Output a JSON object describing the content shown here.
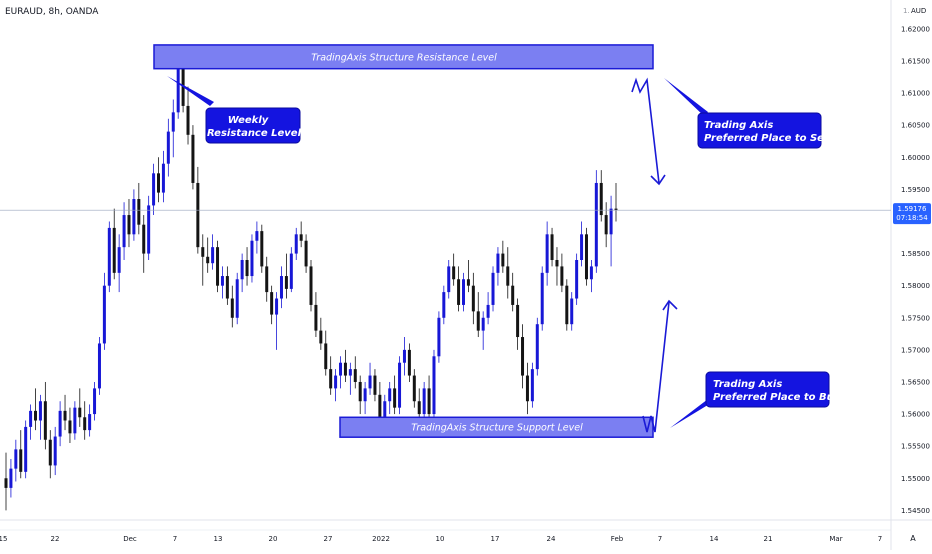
{
  "header": {
    "symbol_line": "EURAUD, 8h, OANDA"
  },
  "price_axis": {
    "currency": "AUD",
    "ticks": [
      "1.62000",
      "1.61500",
      "1.61000",
      "1.60500",
      "1.60000",
      "1.59500",
      "1.58500",
      "1.58000",
      "1.57500",
      "1.57000",
      "1.56500",
      "1.56000",
      "1.55500",
      "1.55000",
      "1.54500"
    ],
    "current_price": "1.59176",
    "countdown": "07:18:54",
    "last_price_color": "#2962ff"
  },
  "time_axis": {
    "labels": [
      "15",
      "22",
      "Dec",
      "7",
      "13",
      "20",
      "27",
      "2022",
      "10",
      "17",
      "24",
      "Feb",
      "7",
      "14",
      "21",
      "Mar",
      "7"
    ],
    "corner_label": "A"
  },
  "annotations": {
    "resistance_label": "TradingAxis Structure Resistance Level",
    "support_label": "TradingAxis Structure Support Level",
    "weekly_line1": "Weekly",
    "weekly_line2": "Resistance Level",
    "sell_line1": "Trading Axis",
    "sell_line2": "Preferred Place to Sell",
    "buy_line1": "Trading Axis",
    "buy_line2": "Preferred Place to Buy"
  },
  "colors": {
    "bull_candle": "#1717d6",
    "bear_candle": "#141414",
    "zone_fill": "#7b7ff2",
    "zone_border": "#1a1ad6",
    "callout_fill": "#1414e0",
    "arrow": "#1a1ad6"
  },
  "chart_data": {
    "type": "candlestick",
    "title": "EURAUD, 8h, OANDA",
    "ylabel": "AUD",
    "ylim": [
      1.5435,
      1.6245
    ],
    "series": [
      {
        "fields": [
          "open",
          "high",
          "low",
          "close"
        ],
        "values": [
          [
            1.55,
            1.554,
            1.545,
            1.5485
          ],
          [
            1.5485,
            1.553,
            1.547,
            1.5515
          ],
          [
            1.5515,
            1.556,
            1.5495,
            1.5545
          ],
          [
            1.5545,
            1.5575,
            1.55,
            1.551
          ],
          [
            1.551,
            1.559,
            1.55,
            1.558
          ],
          [
            1.558,
            1.5615,
            1.556,
            1.5605
          ],
          [
            1.5605,
            1.564,
            1.5575,
            1.559
          ],
          [
            1.559,
            1.563,
            1.556,
            1.562
          ],
          [
            1.562,
            1.565,
            1.5545,
            1.556
          ],
          [
            1.556,
            1.5575,
            1.55,
            1.552
          ],
          [
            1.552,
            1.558,
            1.5505,
            1.5565
          ],
          [
            1.5565,
            1.562,
            1.555,
            1.5605
          ],
          [
            1.5605,
            1.563,
            1.5575,
            1.559
          ],
          [
            1.559,
            1.561,
            1.5555,
            1.557
          ],
          [
            1.557,
            1.562,
            1.556,
            1.561
          ],
          [
            1.561,
            1.564,
            1.558,
            1.5595
          ],
          [
            1.5595,
            1.562,
            1.556,
            1.5575
          ],
          [
            1.5575,
            1.5615,
            1.5565,
            1.56
          ],
          [
            1.56,
            1.565,
            1.559,
            1.564
          ],
          [
            1.564,
            1.572,
            1.563,
            1.571
          ],
          [
            1.571,
            1.582,
            1.57,
            1.58
          ],
          [
            1.58,
            1.59,
            1.579,
            1.589
          ],
          [
            1.589,
            1.592,
            1.581,
            1.582
          ],
          [
            1.582,
            1.588,
            1.579,
            1.586
          ],
          [
            1.586,
            1.593,
            1.584,
            1.591
          ],
          [
            1.591,
            1.5935,
            1.586,
            1.588
          ],
          [
            1.588,
            1.595,
            1.587,
            1.5935
          ],
          [
            1.5935,
            1.596,
            1.588,
            1.5895
          ],
          [
            1.5895,
            1.591,
            1.582,
            1.585
          ],
          [
            1.585,
            1.594,
            1.584,
            1.5925
          ],
          [
            1.5925,
            1.599,
            1.591,
            1.5975
          ],
          [
            1.5975,
            1.6,
            1.593,
            1.5945
          ],
          [
            1.5945,
            1.601,
            1.593,
            1.599
          ],
          [
            1.599,
            1.606,
            1.597,
            1.604
          ],
          [
            1.604,
            1.609,
            1.6,
            1.607
          ],
          [
            1.607,
            1.6175,
            1.606,
            1.616
          ],
          [
            1.616,
            1.6175,
            1.607,
            1.608
          ],
          [
            1.608,
            1.611,
            1.602,
            1.6035
          ],
          [
            1.6035,
            1.605,
            1.595,
            1.596
          ],
          [
            1.596,
            1.5985,
            1.585,
            1.586
          ],
          [
            1.586,
            1.588,
            1.58,
            1.5845
          ],
          [
            1.5845,
            1.5875,
            1.582,
            1.5835
          ],
          [
            1.5835,
            1.588,
            1.5825,
            1.586
          ],
          [
            1.586,
            1.587,
            1.579,
            1.58
          ],
          [
            1.58,
            1.583,
            1.578,
            1.5815
          ],
          [
            1.5815,
            1.583,
            1.577,
            1.578
          ],
          [
            1.578,
            1.58,
            1.5735,
            1.575
          ],
          [
            1.575,
            1.582,
            1.574,
            1.581
          ],
          [
            1.581,
            1.585,
            1.579,
            1.584
          ],
          [
            1.584,
            1.586,
            1.58,
            1.5815
          ],
          [
            1.5815,
            1.588,
            1.5805,
            1.587
          ],
          [
            1.587,
            1.59,
            1.585,
            1.5885
          ],
          [
            1.5885,
            1.5895,
            1.582,
            1.583
          ],
          [
            1.583,
            1.5845,
            1.5775,
            1.579
          ],
          [
            1.579,
            1.58,
            1.574,
            1.5755
          ],
          [
            1.5755,
            1.579,
            1.57,
            1.578
          ],
          [
            1.578,
            1.583,
            1.5765,
            1.5815
          ],
          [
            1.5815,
            1.585,
            1.578,
            1.5795
          ],
          [
            1.5795,
            1.586,
            1.579,
            1.585
          ],
          [
            1.585,
            1.589,
            1.584,
            1.588
          ],
          [
            1.588,
            1.59,
            1.586,
            1.587
          ],
          [
            1.587,
            1.588,
            1.582,
            1.583
          ],
          [
            1.583,
            1.584,
            1.576,
            1.577
          ],
          [
            1.577,
            1.579,
            1.572,
            1.573
          ],
          [
            1.573,
            1.575,
            1.57,
            1.571
          ],
          [
            1.571,
            1.573,
            1.566,
            1.567
          ],
          [
            1.567,
            1.569,
            1.563,
            1.564
          ],
          [
            1.564,
            1.567,
            1.562,
            1.566
          ],
          [
            1.566,
            1.569,
            1.564,
            1.568
          ],
          [
            1.568,
            1.57,
            1.565,
            1.566
          ],
          [
            1.566,
            1.568,
            1.563,
            1.567
          ],
          [
            1.567,
            1.569,
            1.564,
            1.565
          ],
          [
            1.565,
            1.566,
            1.56,
            1.562
          ],
          [
            1.562,
            1.565,
            1.56,
            1.564
          ],
          [
            1.564,
            1.568,
            1.563,
            1.566
          ],
          [
            1.566,
            1.567,
            1.562,
            1.563
          ],
          [
            1.563,
            1.565,
            1.558,
            1.559
          ],
          [
            1.559,
            1.563,
            1.5575,
            1.562
          ],
          [
            1.562,
            1.565,
            1.56,
            1.564
          ],
          [
            1.564,
            1.566,
            1.56,
            1.561
          ],
          [
            1.561,
            1.569,
            1.56,
            1.568
          ],
          [
            1.568,
            1.572,
            1.566,
            1.57
          ],
          [
            1.57,
            1.571,
            1.565,
            1.566
          ],
          [
            1.566,
            1.567,
            1.561,
            1.562
          ],
          [
            1.562,
            1.564,
            1.558,
            1.56
          ],
          [
            1.56,
            1.565,
            1.559,
            1.564
          ],
          [
            1.564,
            1.566,
            1.559,
            1.56
          ],
          [
            1.56,
            1.57,
            1.559,
            1.569
          ],
          [
            1.569,
            1.576,
            1.568,
            1.575
          ],
          [
            1.575,
            1.58,
            1.574,
            1.579
          ],
          [
            1.579,
            1.584,
            1.578,
            1.583
          ],
          [
            1.583,
            1.585,
            1.58,
            1.581
          ],
          [
            1.581,
            1.583,
            1.576,
            1.577
          ],
          [
            1.577,
            1.582,
            1.576,
            1.581
          ],
          [
            1.581,
            1.584,
            1.579,
            1.58
          ],
          [
            1.58,
            1.582,
            1.574,
            1.576
          ],
          [
            1.576,
            1.579,
            1.572,
            1.573
          ],
          [
            1.573,
            1.576,
            1.57,
            1.575
          ],
          [
            1.575,
            1.579,
            1.574,
            1.577
          ],
          [
            1.577,
            1.583,
            1.576,
            1.582
          ],
          [
            1.582,
            1.586,
            1.58,
            1.585
          ],
          [
            1.585,
            1.587,
            1.582,
            1.583
          ],
          [
            1.583,
            1.586,
            1.578,
            1.58
          ],
          [
            1.58,
            1.582,
            1.576,
            1.577
          ],
          [
            1.577,
            1.578,
            1.57,
            1.572
          ],
          [
            1.572,
            1.574,
            1.564,
            1.566
          ],
          [
            1.566,
            1.568,
            1.56,
            1.562
          ],
          [
            1.562,
            1.568,
            1.561,
            1.567
          ],
          [
            1.567,
            1.575,
            1.566,
            1.574
          ],
          [
            1.574,
            1.583,
            1.573,
            1.582
          ],
          [
            1.582,
            1.59,
            1.58,
            1.588
          ],
          [
            1.588,
            1.589,
            1.583,
            1.584
          ],
          [
            1.584,
            1.586,
            1.58,
            1.583
          ],
          [
            1.583,
            1.585,
            1.579,
            1.58
          ],
          [
            1.58,
            1.581,
            1.573,
            1.574
          ],
          [
            1.574,
            1.579,
            1.573,
            1.578
          ],
          [
            1.578,
            1.585,
            1.577,
            1.584
          ],
          [
            1.584,
            1.59,
            1.583,
            1.588
          ],
          [
            1.588,
            1.589,
            1.58,
            1.581
          ],
          [
            1.581,
            1.584,
            1.579,
            1.583
          ],
          [
            1.583,
            1.598,
            1.582,
            1.596
          ],
          [
            1.596,
            1.598,
            1.59,
            1.591
          ],
          [
            1.591,
            1.593,
            1.586,
            1.588
          ],
          [
            1.588,
            1.594,
            1.583,
            1.592
          ],
          [
            1.592,
            1.596,
            1.59,
            1.5918
          ]
        ]
      }
    ],
    "reference_lines": [
      {
        "price": 1.59176,
        "label": "1.59176"
      }
    ],
    "zones": [
      {
        "label": "TradingAxis Structure Resistance Level",
        "from": 1.6138,
        "to": 1.6175
      },
      {
        "label": "TradingAxis Structure Support Level",
        "from": 1.5564,
        "to": 1.5595
      }
    ],
    "x_tick_labels": [
      "15",
      "22",
      "Dec",
      "7",
      "13",
      "20",
      "27",
      "2022",
      "10",
      "17",
      "24",
      "Feb",
      "7",
      "14",
      "21",
      "Mar",
      "7"
    ],
    "grid": false,
    "legend": "none"
  }
}
